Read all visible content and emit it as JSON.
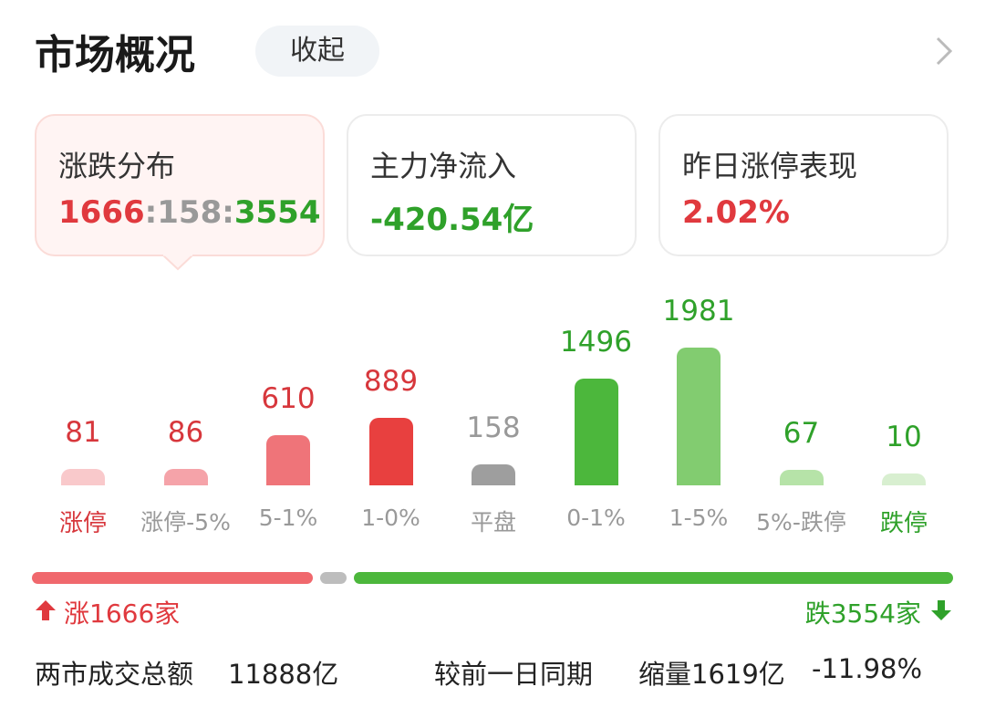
{
  "header": {
    "title": "市场概况",
    "button": "收起"
  },
  "cards": [
    {
      "label": "涨跌分布",
      "values": [
        1666,
        158,
        3554
      ],
      "separator": ":"
    },
    {
      "label": "主力净流入",
      "value": "-420.54亿"
    },
    {
      "label": "昨日涨停表现",
      "value": "2.02%"
    }
  ],
  "bars": [
    {
      "label": "涨停",
      "value": 81,
      "color": "#f9c9cb"
    },
    {
      "label": "涨停-5%",
      "value": 86,
      "color": "#f5a3a9"
    },
    {
      "label": "5-1%",
      "value": 610,
      "color": "#ef7479"
    },
    {
      "label": "1-0%",
      "value": 889,
      "color": "#e8403f"
    },
    {
      "label": "平盘",
      "value": 158,
      "color": "#9e9e9e"
    },
    {
      "label": "0-1%",
      "value": 1496,
      "color": "#4cb73c"
    },
    {
      "label": "1-5%",
      "value": 1981,
      "color": "#82cc70"
    },
    {
      "label": "5%-跌停",
      "value": 67,
      "color": "#b6e3a8"
    },
    {
      "label": "跌停",
      "value": 10,
      "color": "#d8efd0"
    }
  ],
  "breadth": {
    "up": "涨1666家",
    "down": "跌3554家"
  },
  "footer": {
    "label": "两市成交总额",
    "amount": "11888亿",
    "compare": "较前一日同期",
    "change": "缩量1619亿",
    "percent": "-11.98%"
  }
}
